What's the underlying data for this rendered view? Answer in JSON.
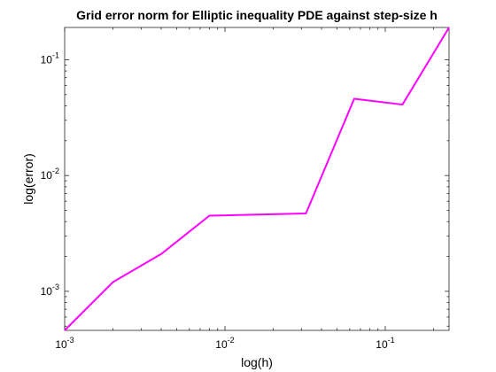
{
  "chart_data": {
    "type": "line",
    "title": "Grid error norm for Elliptic inequality PDE against step-size h",
    "xlabel": "log(h)",
    "ylabel": "log(error)",
    "xscale": "log",
    "yscale": "log",
    "xlim": [
      0.001,
      0.25
    ],
    "ylim": [
      0.00046,
      0.19
    ],
    "grid": false,
    "x_ticks": [
      {
        "value": 0.001,
        "base": "10",
        "exp": "-3"
      },
      {
        "value": 0.01,
        "base": "10",
        "exp": "-2"
      },
      {
        "value": 0.1,
        "base": "10",
        "exp": "-1"
      }
    ],
    "y_ticks": [
      {
        "value": 0.001,
        "base": "10",
        "exp": "-3"
      },
      {
        "value": 0.01,
        "base": "10",
        "exp": "-2"
      },
      {
        "value": 0.1,
        "base": "10",
        "exp": "-1"
      }
    ],
    "series": [
      {
        "color": "#ff00ff",
        "x": [
          0.001,
          0.002,
          0.004,
          0.008,
          0.032,
          0.064,
          0.128,
          0.25
        ],
        "y": [
          0.00046,
          0.0012,
          0.0021,
          0.0045,
          0.0047,
          0.046,
          0.041,
          0.19
        ]
      }
    ]
  }
}
